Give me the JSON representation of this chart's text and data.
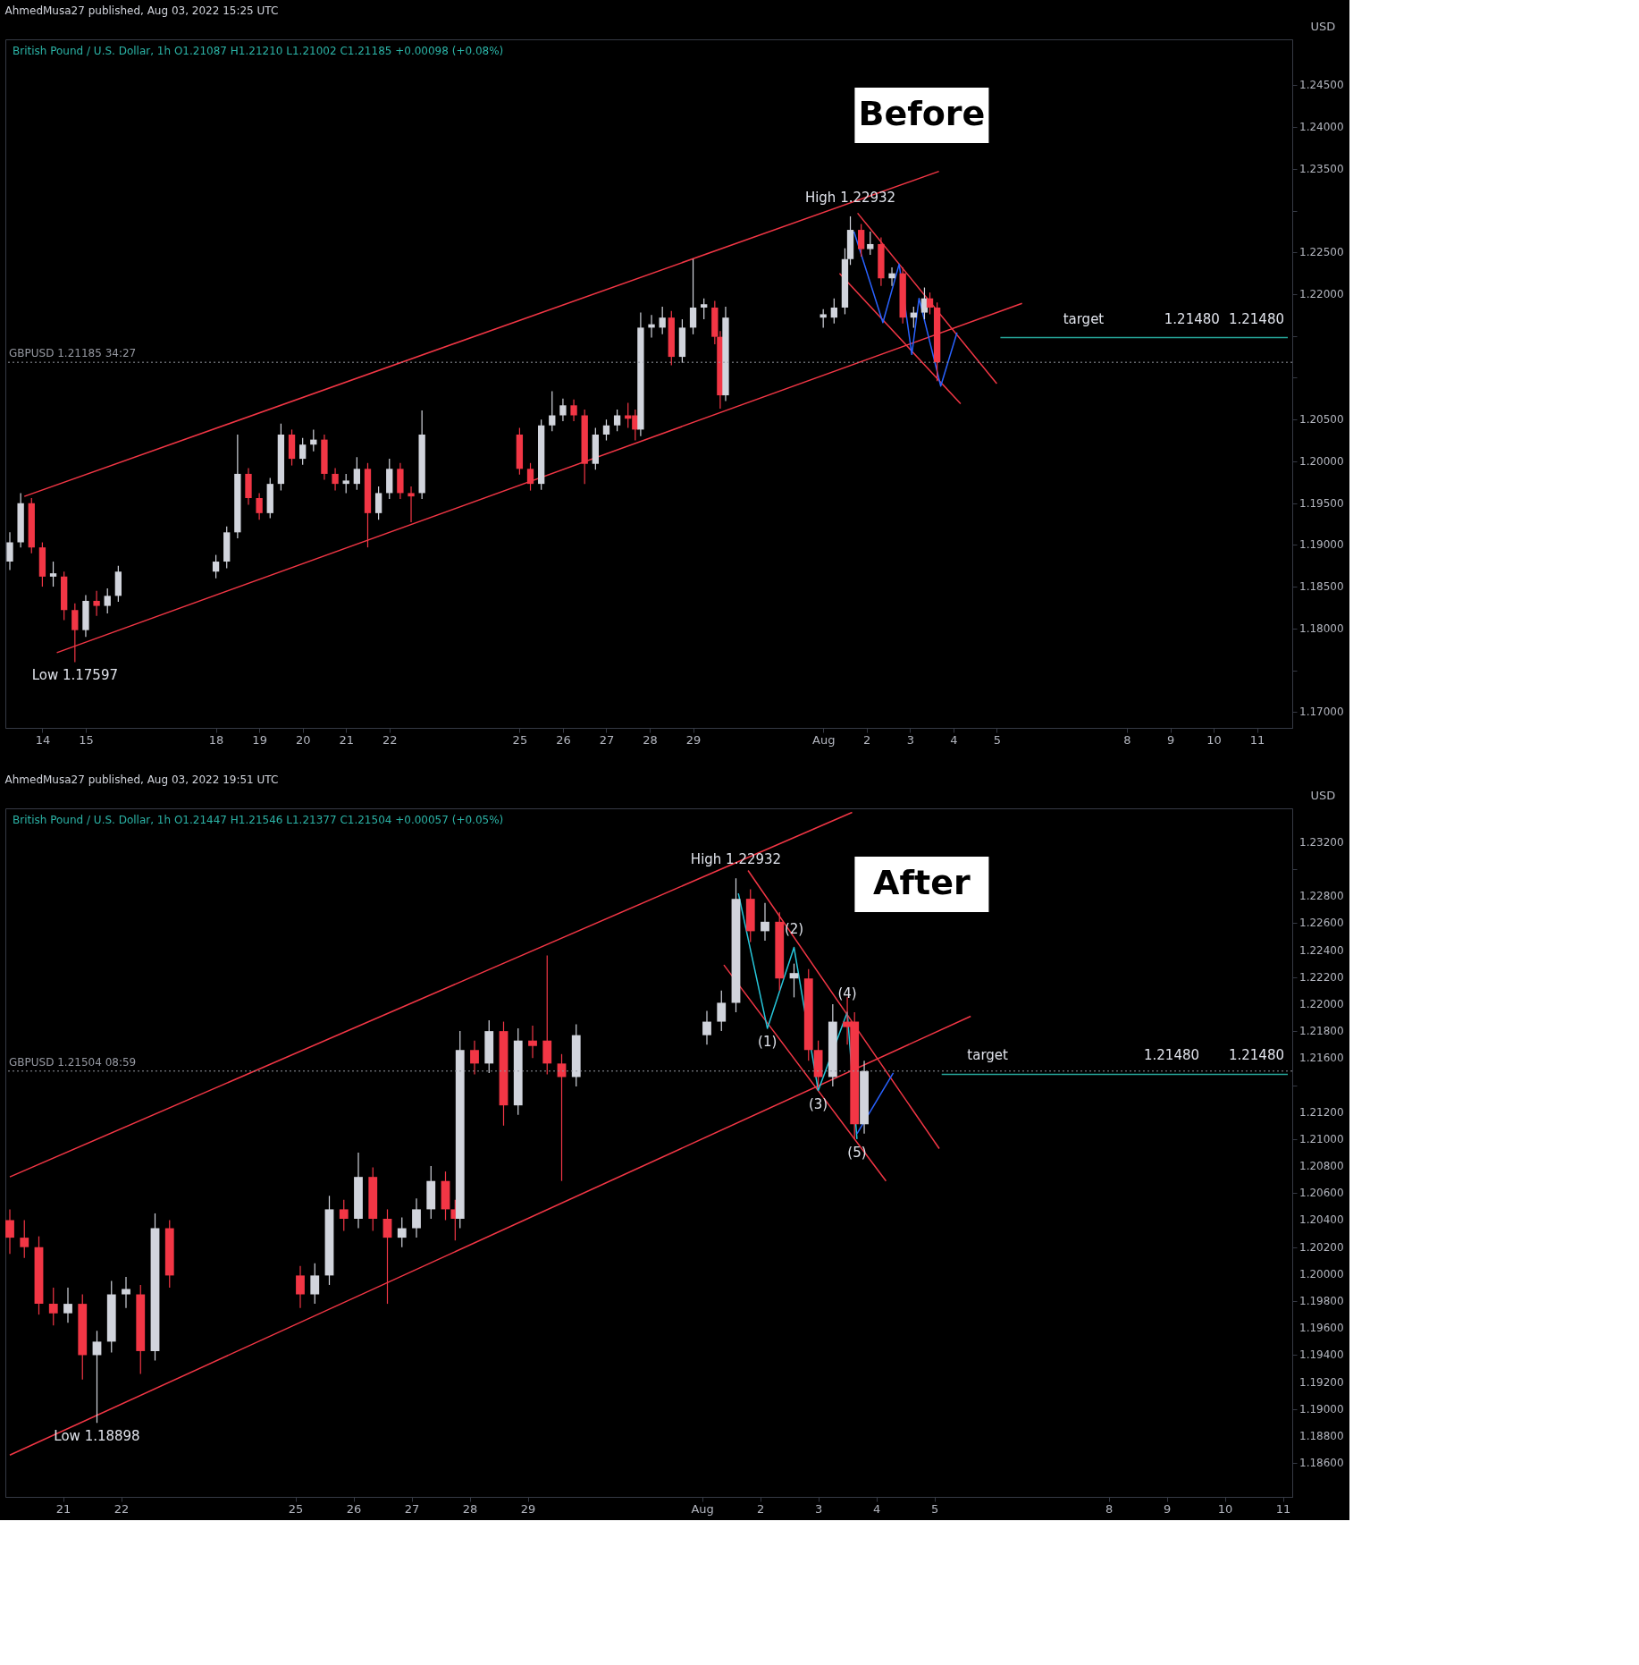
{
  "chart_data": [
    {
      "type": "candlestick",
      "title": "Before",
      "subtitle": "British Pound / U.S. Dollar, 1h  O1.21087 H1.21210 L1.21002 C1.21185 +0.00098 (+0.08%)",
      "ylabel": "USD",
      "annotations": [
        "AhmedMusa27 published, Aug 03, 2022 15:25 UTC",
        {
          "text": "target",
          "x": "2022-08-07T00:00",
          "y": 1.2148
        },
        {
          "text": "1.21480",
          "x": "2022-08-09T12:00",
          "y": 1.2148
        },
        {
          "text": "High 1.22932",
          "x": "2022-08-01T15:00",
          "y": 1.22932
        },
        {
          "text": "Low 1.17597",
          "x": "2022-07-14T18:00",
          "y": 1.17597
        },
        {
          "text": "1.21480",
          "x": "2022-08-11T17:00",
          "y": 1.2148
        }
      ],
      "x": [
        "2022-07-13T06:00",
        "2022-07-13T12:00",
        "2022-07-13T18:00",
        "2022-07-14T00:00",
        "2022-07-14T06:00",
        "2022-07-14T12:00",
        "2022-07-14T18:00",
        "2022-07-15T00:00",
        "2022-07-15T06:00",
        "2022-07-15T12:00",
        "2022-07-15T18:00",
        "2022-07-18T00:00",
        "2022-07-18T06:00",
        "2022-07-18T12:00",
        "2022-07-18T18:00",
        "2022-07-19T00:00",
        "2022-07-19T06:00",
        "2022-07-19T12:00",
        "2022-07-19T18:00",
        "2022-07-20T00:00",
        "2022-07-20T06:00",
        "2022-07-20T12:00",
        "2022-07-20T18:00",
        "2022-07-21T00:00",
        "2022-07-21T06:00",
        "2022-07-21T12:00",
        "2022-07-21T18:00",
        "2022-07-22T00:00",
        "2022-07-22T06:00",
        "2022-07-22T12:00",
        "2022-07-22T18:00",
        "2022-07-25T00:00",
        "2022-07-25T06:00",
        "2022-07-25T12:00",
        "2022-07-25T18:00",
        "2022-07-26T00:00",
        "2022-07-26T06:00",
        "2022-07-26T12:00",
        "2022-07-26T18:00",
        "2022-07-27T00:00",
        "2022-07-27T06:00",
        "2022-07-27T12:00",
        "2022-07-27T16:00",
        "2022-07-27T19:00",
        "2022-07-28T01:00",
        "2022-07-28T07:00",
        "2022-07-28T12:00",
        "2022-07-28T18:00",
        "2022-07-29T00:00",
        "2022-07-29T06:00",
        "2022-07-29T12:00",
        "2022-07-29T15:00",
        "2022-07-29T18:00",
        "2022-08-01T00:00",
        "2022-08-01T06:00",
        "2022-08-01T12:00",
        "2022-08-01T15:00",
        "2022-08-01T21:00",
        "2022-08-02T02:00",
        "2022-08-02T08:00",
        "2022-08-02T14:00",
        "2022-08-02T20:00",
        "2022-08-03T02:00",
        "2022-08-03T08:00",
        "2022-08-03T11:00",
        "2022-08-03T15:00"
      ],
      "ohlc": [
        [
          1.188,
          1.1915,
          1.187,
          1.1903
        ],
        [
          1.1903,
          1.1962,
          1.1897,
          1.195
        ],
        [
          1.195,
          1.1956,
          1.189,
          1.1897
        ],
        [
          1.1897,
          1.1903,
          1.185,
          1.1862
        ],
        [
          1.1862,
          1.188,
          1.185,
          1.1866
        ],
        [
          1.1862,
          1.1868,
          1.181,
          1.1822
        ],
        [
          1.1822,
          1.183,
          1.17597,
          1.1798
        ],
        [
          1.1798,
          1.184,
          1.179,
          1.1833
        ],
        [
          1.1833,
          1.1845,
          1.1815,
          1.1827
        ],
        [
          1.1827,
          1.1848,
          1.1818,
          1.1839
        ],
        [
          1.1839,
          1.1875,
          1.1832,
          1.1868
        ],
        [
          1.1868,
          1.1888,
          1.186,
          1.188
        ],
        [
          1.188,
          1.1922,
          1.1872,
          1.1915
        ],
        [
          1.1915,
          1.2032,
          1.1908,
          1.1985
        ],
        [
          1.1985,
          1.1992,
          1.1948,
          1.1956
        ],
        [
          1.1956,
          1.1962,
          1.193,
          1.1938
        ],
        [
          1.1938,
          1.198,
          1.1932,
          1.1973
        ],
        [
          1.1973,
          1.2045,
          1.1965,
          1.2032
        ],
        [
          1.2032,
          1.2038,
          1.1995,
          1.2003
        ],
        [
          1.2003,
          1.2028,
          1.1996,
          1.202
        ],
        [
          1.202,
          1.2038,
          1.2012,
          1.2026
        ],
        [
          1.2026,
          1.2032,
          1.1978,
          1.1985
        ],
        [
          1.1985,
          1.1992,
          1.1965,
          1.1973
        ],
        [
          1.1973,
          1.1985,
          1.1962,
          1.1977
        ],
        [
          1.1973,
          1.2005,
          1.1966,
          1.1991
        ],
        [
          1.1991,
          1.1998,
          1.1897,
          1.1938
        ],
        [
          1.1938,
          1.197,
          1.193,
          1.1962
        ],
        [
          1.1962,
          1.2003,
          1.1955,
          1.1991
        ],
        [
          1.1991,
          1.1998,
          1.1955,
          1.1962
        ],
        [
          1.1962,
          1.197,
          1.1927,
          1.1958
        ],
        [
          1.1962,
          1.2061,
          1.1955,
          1.2032
        ],
        [
          1.2032,
          1.204,
          1.1984,
          1.1991
        ],
        [
          1.1991,
          1.1998,
          1.1965,
          1.1973
        ],
        [
          1.1973,
          1.205,
          1.1966,
          1.2043
        ],
        [
          1.2043,
          1.2084,
          1.2036,
          1.2055
        ],
        [
          1.2055,
          1.2075,
          1.2048,
          1.2067
        ],
        [
          1.2067,
          1.2074,
          1.2048,
          1.2055
        ],
        [
          1.2055,
          1.2062,
          1.1973,
          1.1997
        ],
        [
          1.1997,
          1.204,
          1.199,
          1.2032
        ],
        [
          1.2032,
          1.205,
          1.2025,
          1.2043
        ],
        [
          1.2043,
          1.2062,
          1.2036,
          1.2055
        ],
        [
          1.2055,
          1.207,
          1.204,
          1.2051
        ],
        [
          1.2055,
          1.2062,
          1.2025,
          1.2038
        ],
        [
          1.2038,
          1.2178,
          1.203,
          1.216
        ],
        [
          1.216,
          1.2175,
          1.2148,
          1.2164
        ],
        [
          1.216,
          1.2185,
          1.2152,
          1.2172
        ],
        [
          1.2172,
          1.218,
          1.2115,
          1.2125
        ],
        [
          1.2125,
          1.217,
          1.2118,
          1.216
        ],
        [
          1.216,
          1.2242,
          1.2152,
          1.2184
        ],
        [
          1.2184,
          1.2195,
          1.217,
          1.2188
        ],
        [
          1.2184,
          1.2192,
          1.214,
          1.2149
        ],
        [
          1.2149,
          1.2156,
          1.2063,
          1.2079
        ],
        [
          1.2079,
          1.2185,
          1.2072,
          1.2172
        ],
        [
          1.2172,
          1.2182,
          1.216,
          1.2176
        ],
        [
          1.2172,
          1.2195,
          1.2165,
          1.2184
        ],
        [
          1.2184,
          1.2255,
          1.2176,
          1.2242
        ],
        [
          1.2242,
          1.22932,
          1.2235,
          1.2277
        ],
        [
          1.2277,
          1.2284,
          1.2245,
          1.2254
        ],
        [
          1.2254,
          1.2275,
          1.2247,
          1.226
        ],
        [
          1.226,
          1.2268,
          1.221,
          1.2219
        ],
        [
          1.2219,
          1.2232,
          1.221,
          1.2225
        ],
        [
          1.2225,
          1.2232,
          1.2165,
          1.2172
        ],
        [
          1.2172,
          1.2185,
          1.216,
          1.2178
        ],
        [
          1.2178,
          1.2208,
          1.217,
          1.2195
        ],
        [
          1.2195,
          1.2202,
          1.2176,
          1.2184
        ],
        [
          1.2184,
          1.219,
          1.2096,
          1.21185
        ]
      ],
      "series": [
        {
          "type": "line",
          "color": "#f23645",
          "x": [
            "2022-07-13T14:00",
            "2022-08-03T16:00"
          ],
          "values": [
            1.1958,
            1.2347
          ]
        },
        {
          "type": "line",
          "color": "#f23645",
          "x": [
            "2022-07-14T08:00",
            "2022-08-05T14:00"
          ],
          "values": [
            1.1771,
            1.2189
          ]
        },
        {
          "type": "line",
          "color": "#f23645",
          "x": [
            "2022-08-01T19:00",
            "2022-08-05T00:00"
          ],
          "values": [
            1.2297,
            1.2093
          ]
        },
        {
          "type": "line",
          "color": "#f23645",
          "x": [
            "2022-08-01T09:00",
            "2022-08-04T04:00"
          ],
          "values": [
            1.2225,
            1.2069
          ]
        },
        {
          "type": "line",
          "color": "#2962ff",
          "x": [
            "2022-08-01T17:00",
            "2022-08-02T09:00",
            "2022-08-02T18:00",
            "2022-08-03T01:00",
            "2022-08-03T05:00",
            "2022-08-03T17:00",
            "2022-08-04T02:00"
          ],
          "values": [
            1.2275,
            1.2166,
            1.2236,
            1.2128,
            1.2195,
            1.209,
            1.2154
          ]
        },
        {
          "type": "line",
          "color": "#26a69a",
          "x": [
            "2022-08-05T02:00",
            "2022-08-11T17:00"
          ],
          "values": [
            1.2148,
            1.2148
          ]
        }
      ],
      "ref_lines": [
        {
          "axis": "y",
          "value": 1.21185,
          "label": "GBPUSD 1.21185 34:27",
          "color": "#9598a1",
          "line_style": "dotted"
        }
      ],
      "xlim": [
        "2022-07-13T06:00",
        "2022-08-11T17:00"
      ],
      "ylim": [
        1.1681,
        1.2505
      ],
      "xticks": [
        {
          "value": "2022-07-14",
          "label": "14"
        },
        {
          "value": "2022-07-15",
          "label": "15"
        },
        {
          "value": "2022-07-18",
          "label": "18"
        },
        {
          "value": "2022-07-19",
          "label": "19"
        },
        {
          "value": "2022-07-20",
          "label": "20"
        },
        {
          "value": "2022-07-21",
          "label": "21"
        },
        {
          "value": "2022-07-22",
          "label": "22"
        },
        {
          "value": "2022-07-25",
          "label": "25"
        },
        {
          "value": "2022-07-26",
          "label": "26"
        },
        {
          "value": "2022-07-27",
          "label": "27"
        },
        {
          "value": "2022-07-28",
          "label": "28"
        },
        {
          "value": "2022-07-29",
          "label": "29"
        },
        {
          "value": "2022-08-01",
          "label": "Aug"
        },
        {
          "value": "2022-08-02",
          "label": "2"
        },
        {
          "value": "2022-08-03",
          "label": "3"
        },
        {
          "value": "2022-08-04",
          "label": "4"
        },
        {
          "value": "2022-08-05",
          "label": "5"
        },
        {
          "value": "2022-08-08",
          "label": "8"
        },
        {
          "value": "2022-08-09",
          "label": "9"
        },
        {
          "value": "2022-08-10",
          "label": "10"
        },
        {
          "value": "2022-08-11",
          "label": "11"
        }
      ],
      "yticks": [
        {
          "value": 1.17,
          "label": "1.17000"
        },
        {
          "value": 1.175,
          "label": null
        },
        {
          "value": 1.18,
          "label": "1.18000"
        },
        {
          "value": 1.185,
          "label": "1.18500"
        },
        {
          "value": 1.19,
          "label": "1.19000"
        },
        {
          "value": 1.195,
          "label": "1.19500"
        },
        {
          "value": 1.2,
          "label": "1.20000"
        },
        {
          "value": 1.205,
          "label": "1.20500"
        },
        {
          "value": 1.21,
          "label": null
        },
        {
          "value": 1.215,
          "label": null
        },
        {
          "value": 1.22,
          "label": "1.22000"
        },
        {
          "value": 1.225,
          "label": "1.22500"
        },
        {
          "value": 1.23,
          "label": null
        },
        {
          "value": 1.235,
          "label": "1.23500"
        },
        {
          "value": 1.24,
          "label": "1.24000"
        },
        {
          "value": 1.245,
          "label": "1.24500"
        }
      ],
      "grid": false
    },
    {
      "type": "candlestick",
      "title": "After",
      "subtitle": "British Pound / U.S. Dollar, 1h  O1.21447 H1.21546 L1.21377 C1.21504 +0.00057 (+0.05%)",
      "ylabel": "USD",
      "annotations": [
        "AhmedMusa27 published, Aug 03, 2022 19:51 UTC",
        {
          "text": "(1)",
          "x": "2022-08-02T03:00",
          "y": 1.2182
        },
        {
          "text": "(2)",
          "x": "2022-08-02T14:00",
          "y": 1.2242
        },
        {
          "text": "(3)",
          "x": "2022-08-03T00:00",
          "y": 1.2136
        },
        {
          "text": "(4)",
          "x": "2022-08-03T12:00",
          "y": 1.2194
        },
        {
          "text": "(5)",
          "x": "2022-08-03T16:00",
          "y": 1.21
        },
        {
          "text": "target",
          "x": "2022-08-05T22:00",
          "y": 1.2148
        },
        {
          "text": "1.21480",
          "x": "2022-08-09T02:00",
          "y": 1.2148
        },
        {
          "text": "High 1.22932",
          "x": "2022-08-01T14:00",
          "y": 1.22932
        },
        {
          "text": "Low 1.18898",
          "x": "2022-07-21T14:00",
          "y": 1.18898
        },
        {
          "text": "1.21480",
          "x": "2022-08-11T02:00",
          "y": 1.2148
        }
      ],
      "x": [
        "2022-07-20T02:00",
        "2022-07-20T08:00",
        "2022-07-20T14:00",
        "2022-07-20T20:00",
        "2022-07-21T02:00",
        "2022-07-21T08:00",
        "2022-07-21T14:00",
        "2022-07-21T20:00",
        "2022-07-22T02:00",
        "2022-07-22T08:00",
        "2022-07-22T14:00",
        "2022-07-22T20:00",
        "2022-07-25T02:00",
        "2022-07-25T08:00",
        "2022-07-25T14:00",
        "2022-07-25T20:00",
        "2022-07-26T02:00",
        "2022-07-26T08:00",
        "2022-07-26T14:00",
        "2022-07-26T20:00",
        "2022-07-27T02:00",
        "2022-07-27T08:00",
        "2022-07-27T14:00",
        "2022-07-27T18:00",
        "2022-07-27T20:00",
        "2022-07-28T02:00",
        "2022-07-28T08:00",
        "2022-07-28T14:00",
        "2022-07-28T20:00",
        "2022-07-29T02:00",
        "2022-07-29T08:00",
        "2022-07-29T14:00",
        "2022-07-29T20:00",
        "2022-08-01T02:00",
        "2022-08-01T08:00",
        "2022-08-01T14:00",
        "2022-08-01T20:00",
        "2022-08-02T02:00",
        "2022-08-02T08:00",
        "2022-08-02T14:00",
        "2022-08-02T20:00",
        "2022-08-03T00:00",
        "2022-08-03T06:00",
        "2022-08-03T12:00",
        "2022-08-03T15:00",
        "2022-08-03T19:00"
      ],
      "ohlc": [
        [
          1.204,
          1.2048,
          1.2015,
          1.2027
        ],
        [
          1.2027,
          1.204,
          1.2012,
          1.202
        ],
        [
          1.202,
          1.2028,
          1.197,
          1.1978
        ],
        [
          1.1978,
          1.199,
          1.1962,
          1.1971
        ],
        [
          1.1971,
          1.199,
          1.1964,
          1.1978
        ],
        [
          1.1978,
          1.1985,
          1.1922,
          1.194
        ],
        [
          1.194,
          1.1958,
          1.18898,
          1.195
        ],
        [
          1.195,
          1.1995,
          1.1942,
          1.1985
        ],
        [
          1.1985,
          1.1998,
          1.1975,
          1.1989
        ],
        [
          1.1985,
          1.1992,
          1.1926,
          1.1943
        ],
        [
          1.1943,
          1.2045,
          1.1936,
          1.2034
        ],
        [
          1.2034,
          1.204,
          1.199,
          1.1999
        ],
        [
          1.1999,
          1.2006,
          1.1975,
          1.1985
        ],
        [
          1.1985,
          1.2008,
          1.1978,
          1.1999
        ],
        [
          1.1999,
          1.2058,
          1.1992,
          1.2048
        ],
        [
          1.2048,
          1.2055,
          1.2032,
          1.2041
        ],
        [
          1.2041,
          1.209,
          1.2034,
          1.2072
        ],
        [
          1.2072,
          1.2079,
          1.2032,
          1.2041
        ],
        [
          1.2041,
          1.2048,
          1.1978,
          1.2027
        ],
        [
          1.2027,
          1.2042,
          1.202,
          1.2034
        ],
        [
          1.2034,
          1.2056,
          1.2027,
          1.2048
        ],
        [
          1.2048,
          1.208,
          1.2041,
          1.2069
        ],
        [
          1.2069,
          1.2076,
          1.204,
          1.2048
        ],
        [
          1.2048,
          1.2055,
          1.2025,
          1.2041
        ],
        [
          1.2041,
          1.218,
          1.2034,
          1.2166
        ],
        [
          1.2166,
          1.2173,
          1.2148,
          1.2156
        ],
        [
          1.2156,
          1.2188,
          1.2149,
          1.218
        ],
        [
          1.218,
          1.2187,
          1.211,
          1.2125
        ],
        [
          1.2125,
          1.2182,
          1.2118,
          1.2173
        ],
        [
          1.2173,
          1.2184,
          1.216,
          1.2169
        ],
        [
          1.2173,
          1.2236,
          1.2148,
          1.2156
        ],
        [
          1.2156,
          1.2163,
          1.2069,
          1.2146
        ],
        [
          1.2146,
          1.2185,
          1.2139,
          1.2177
        ],
        [
          1.2177,
          1.2195,
          1.217,
          1.2187
        ],
        [
          1.2187,
          1.221,
          1.218,
          1.2201
        ],
        [
          1.2201,
          1.22932,
          1.2194,
          1.2278
        ],
        [
          1.2278,
          1.2285,
          1.2246,
          1.2254
        ],
        [
          1.2254,
          1.2275,
          1.2247,
          1.2261
        ],
        [
          1.2261,
          1.2268,
          1.221,
          1.2219
        ],
        [
          1.2219,
          1.223,
          1.2205,
          1.2223
        ],
        [
          1.2219,
          1.2226,
          1.2158,
          1.2166
        ],
        [
          1.2166,
          1.2173,
          1.2138,
          1.2146
        ],
        [
          1.2146,
          1.22,
          1.2139,
          1.2187
        ],
        [
          1.2187,
          1.2205,
          1.217,
          1.2183
        ],
        [
          1.2187,
          1.2194,
          1.21,
          1.2111
        ],
        [
          1.2111,
          1.2158,
          1.2104,
          1.21504
        ]
      ],
      "series": [
        {
          "type": "line",
          "color": "#f23645",
          "x": [
            "2022-07-20T02:00",
            "2022-08-03T14:00"
          ],
          "values": [
            1.2072,
            1.2342
          ]
        },
        {
          "type": "line",
          "color": "#f23645",
          "x": [
            "2022-07-20T02:00",
            "2022-08-05T15:00"
          ],
          "values": [
            1.1866,
            1.2191
          ]
        },
        {
          "type": "line",
          "color": "#f23645",
          "x": [
            "2022-08-01T19:00",
            "2022-08-05T02:00"
          ],
          "values": [
            1.2299,
            1.2093
          ]
        },
        {
          "type": "line",
          "color": "#f23645",
          "x": [
            "2022-08-01T09:00",
            "2022-08-04T04:00"
          ],
          "values": [
            1.2229,
            1.2069
          ]
        },
        {
          "type": "line",
          "color": "#26c6da",
          "x": [
            "2022-08-01T15:00",
            "2022-08-02T03:00",
            "2022-08-02T14:00",
            "2022-08-03T00:00",
            "2022-08-03T12:00",
            "2022-08-03T16:00"
          ],
          "values": [
            1.2282,
            1.2182,
            1.2242,
            1.2136,
            1.2194,
            1.21
          ]
        },
        {
          "type": "line",
          "color": "#2962ff",
          "x": [
            "2022-08-03T16:00",
            "2022-08-04T07:00"
          ],
          "values": [
            1.2104,
            1.2149
          ]
        },
        {
          "type": "line",
          "color": "#26a69a",
          "x": [
            "2022-08-05T03:00",
            "2022-08-11T02:00"
          ],
          "values": [
            1.2148,
            1.2148
          ]
        }
      ],
      "ref_lines": [
        {
          "axis": "y",
          "value": 1.21504,
          "label": "GBPUSD 1.21504 08:59",
          "color": "#9598a1",
          "line_style": "dotted"
        }
      ],
      "xlim": [
        "2022-07-20T02:00",
        "2022-08-11T02:00"
      ],
      "ylim": [
        1.1835,
        1.2345
      ],
      "xticks": [
        {
          "value": "2022-07-21",
          "label": "21"
        },
        {
          "value": "2022-07-22",
          "label": "22"
        },
        {
          "value": "2022-07-25",
          "label": "25"
        },
        {
          "value": "2022-07-26",
          "label": "26"
        },
        {
          "value": "2022-07-27",
          "label": "27"
        },
        {
          "value": "2022-07-28",
          "label": "28"
        },
        {
          "value": "2022-07-29",
          "label": "29"
        },
        {
          "value": "2022-08-01",
          "label": "Aug"
        },
        {
          "value": "2022-08-02",
          "label": "2"
        },
        {
          "value": "2022-08-03",
          "label": "3"
        },
        {
          "value": "2022-08-04",
          "label": "4"
        },
        {
          "value": "2022-08-05",
          "label": "5"
        },
        {
          "value": "2022-08-08",
          "label": "8"
        },
        {
          "value": "2022-08-09",
          "label": "9"
        },
        {
          "value": "2022-08-10",
          "label": "10"
        },
        {
          "value": "2022-08-11",
          "label": "11"
        }
      ],
      "yticks": [
        {
          "value": 1.186,
          "label": "1.18600"
        },
        {
          "value": 1.188,
          "label": "1.18800"
        },
        {
          "value": 1.19,
          "label": "1.19000"
        },
        {
          "value": 1.192,
          "label": "1.19200"
        },
        {
          "value": 1.194,
          "label": "1.19400"
        },
        {
          "value": 1.196,
          "label": "1.19600"
        },
        {
          "value": 1.198,
          "label": "1.19800"
        },
        {
          "value": 1.2,
          "label": "1.20000"
        },
        {
          "value": 1.202,
          "label": "1.20200"
        },
        {
          "value": 1.204,
          "label": "1.20400"
        },
        {
          "value": 1.206,
          "label": "1.20600"
        },
        {
          "value": 1.208,
          "label": "1.20800"
        },
        {
          "value": 1.21,
          "label": "1.21000"
        },
        {
          "value": 1.212,
          "label": "1.21200"
        },
        {
          "value": 1.214,
          "label": null
        },
        {
          "value": 1.216,
          "label": "1.21600"
        },
        {
          "value": 1.218,
          "label": "1.21800"
        },
        {
          "value": 1.22,
          "label": "1.22000"
        },
        {
          "value": 1.222,
          "label": "1.22200"
        },
        {
          "value": 1.224,
          "label": "1.22400"
        },
        {
          "value": 1.226,
          "label": "1.22600"
        },
        {
          "value": 1.228,
          "label": "1.22800"
        },
        {
          "value": 1.23,
          "label": null
        },
        {
          "value": 1.232,
          "label": "1.23200"
        }
      ],
      "grid": false
    }
  ]
}
